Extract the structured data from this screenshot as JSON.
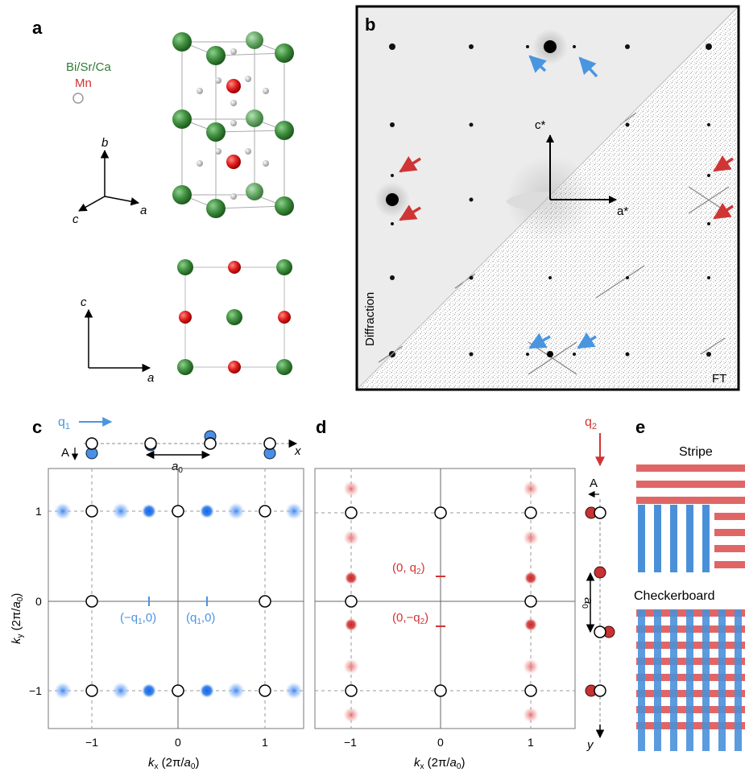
{
  "panel_a": {
    "label": "a",
    "legend_bisrca": "Bi/Sr/Ca",
    "legend_mn": "Mn",
    "axis_top_b": "b",
    "axis_top_c": "c",
    "axis_top_a": "a",
    "axis_bot_c": "c",
    "axis_bot_a": "a"
  },
  "panel_b": {
    "label": "b",
    "cstar": "c*",
    "astar": "a*",
    "diffraction": "Diffraction",
    "ft": "FT"
  },
  "panel_c": {
    "label": "c",
    "q1": "q",
    "q1_sub": "1",
    "A": "A",
    "x": "x",
    "a0": "a",
    "a0_sub": "0",
    "neg_q1_label": "(−q",
    "neg_q1_sub": "1",
    "neg_q1_end": ",0)",
    "q1_label": "(q",
    "q1_label_sub": "1",
    "q1_label_end": ",0)",
    "xlabel_k": "k",
    "xlabel_sub": "x",
    "xlabel_unit": " (2π/",
    "xlabel_a": "a",
    "xlabel_a_sub": "0",
    "xlabel_end": ")",
    "ylabel_k": "k",
    "ylabel_sub": "y",
    "ylabel_unit": " (2π/",
    "ylabel_a": "a",
    "ylabel_a_sub": "0",
    "ylabel_end": ")",
    "xticks": [
      "−1",
      "0",
      "1"
    ],
    "yticks": [
      "1",
      "0",
      "−1"
    ]
  },
  "panel_d": {
    "label": "d",
    "q2": "q",
    "q2_sub": "2",
    "A": "A",
    "y": "y",
    "a0": "a",
    "a0_sub": "0",
    "pos_q2_label": "(0, q",
    "pos_q2_sub": "2",
    "pos_q2_end": ")",
    "neg_q2_label": "(0,−q",
    "neg_q2_sub": "2",
    "neg_q2_end": ")",
    "xlabel_k": "k",
    "xlabel_sub": "x",
    "xlabel_unit": " (2π/",
    "xlabel_a": "a",
    "xlabel_a_sub": "0",
    "xlabel_end": ")",
    "xticks": [
      "−1",
      "0",
      "1"
    ]
  },
  "panel_e": {
    "label": "e",
    "stripe": "Stripe",
    "checkerboard": "Checkerboard"
  },
  "colors": {
    "bisrca": "#2e7d32",
    "mn": "#d32f2f",
    "blue_spot": "#1e6fe0",
    "red_spot": "#c62828",
    "stripe_red": "#e06666",
    "stripe_blue": "#4a90d9"
  }
}
